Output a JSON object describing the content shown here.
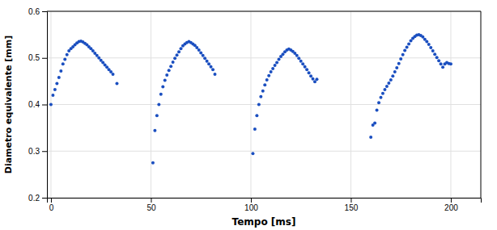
{
  "chart_data": {
    "type": "scatter",
    "xlabel": "Tempo [ms]",
    "ylabel": "Diametro equivalente [mm]",
    "xlim": [
      -2,
      215
    ],
    "ylim": [
      0.2,
      0.6
    ],
    "xticks": [
      0,
      50,
      100,
      150,
      200
    ],
    "yticks": [
      0.2,
      0.3,
      0.4,
      0.5,
      0.6
    ],
    "color": "#1B4FC0",
    "grid": true,
    "x": [
      0,
      1,
      2,
      3,
      4,
      5,
      6,
      7,
      8,
      9,
      10,
      11,
      12,
      13,
      14,
      15,
      16,
      17,
      18,
      19,
      20,
      21,
      22,
      23,
      24,
      25,
      26,
      27,
      28,
      29,
      30,
      31,
      33,
      51,
      52,
      53,
      54,
      55,
      56,
      57,
      58,
      59,
      60,
      61,
      62,
      63,
      64,
      65,
      66,
      67,
      68,
      69,
      70,
      71,
      72,
      73,
      74,
      75,
      76,
      77,
      78,
      79,
      80,
      81,
      82,
      101,
      102,
      103,
      104,
      105,
      106,
      107,
      108,
      109,
      110,
      111,
      112,
      113,
      114,
      115,
      116,
      117,
      118,
      119,
      120,
      121,
      122,
      123,
      124,
      125,
      126,
      127,
      128,
      129,
      130,
      131,
      132,
      133,
      160,
      161,
      162,
      163,
      164,
      165,
      166,
      167,
      168,
      169,
      170,
      171,
      172,
      173,
      174,
      175,
      176,
      177,
      178,
      179,
      180,
      181,
      182,
      183,
      184,
      185,
      186,
      187,
      188,
      189,
      190,
      191,
      192,
      193,
      194,
      195,
      196,
      197,
      198,
      199,
      200
    ],
    "values": [
      0.4,
      0.42,
      0.432,
      0.445,
      0.458,
      0.472,
      0.487,
      0.497,
      0.507,
      0.515,
      0.52,
      0.524,
      0.528,
      0.532,
      0.535,
      0.536,
      0.534,
      0.531,
      0.528,
      0.524,
      0.52,
      0.515,
      0.51,
      0.505,
      0.5,
      0.495,
      0.49,
      0.485,
      0.48,
      0.475,
      0.47,
      0.465,
      0.445,
      0.275,
      0.344,
      0.376,
      0.4,
      0.422,
      0.438,
      0.452,
      0.463,
      0.473,
      0.482,
      0.491,
      0.499,
      0.506,
      0.513,
      0.52,
      0.526,
      0.53,
      0.533,
      0.535,
      0.533,
      0.53,
      0.527,
      0.522,
      0.517,
      0.511,
      0.505,
      0.499,
      0.493,
      0.487,
      0.481,
      0.475,
      0.465,
      0.295,
      0.347,
      0.376,
      0.4,
      0.417,
      0.429,
      0.442,
      0.453,
      0.462,
      0.47,
      0.477,
      0.484,
      0.49,
      0.497,
      0.503,
      0.508,
      0.513,
      0.517,
      0.519,
      0.517,
      0.514,
      0.51,
      0.505,
      0.499,
      0.493,
      0.487,
      0.481,
      0.475,
      0.468,
      0.461,
      0.455,
      0.449,
      0.454,
      0.33,
      0.356,
      0.36,
      0.388,
      0.404,
      0.415,
      0.424,
      0.432,
      0.439,
      0.446,
      0.453,
      0.461,
      0.47,
      0.479,
      0.488,
      0.498,
      0.507,
      0.516,
      0.523,
      0.53,
      0.537,
      0.542,
      0.546,
      0.549,
      0.55,
      0.548,
      0.545,
      0.54,
      0.535,
      0.529,
      0.522,
      0.515,
      0.508,
      0.501,
      0.494,
      0.487,
      0.48,
      0.487,
      0.49,
      0.488,
      0.487
    ]
  }
}
